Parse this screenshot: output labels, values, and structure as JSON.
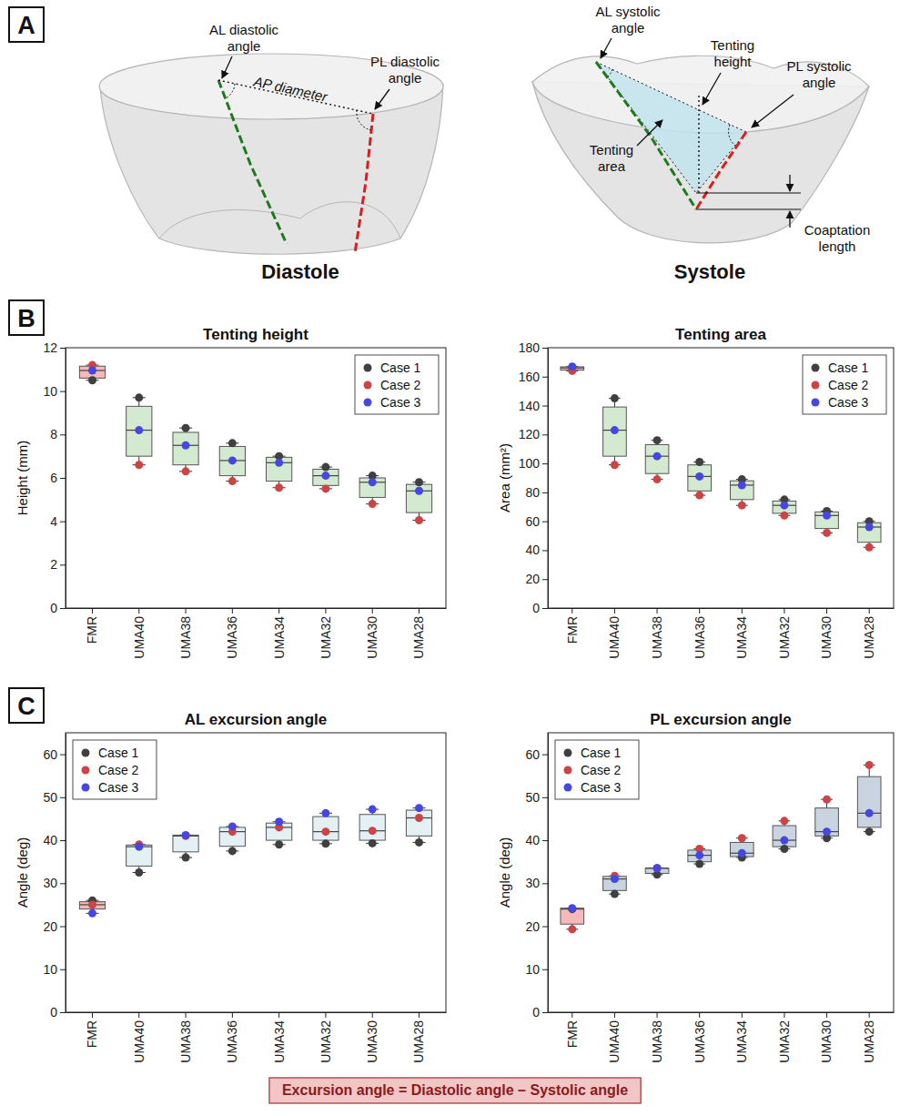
{
  "panel_labels": [
    "A",
    "B",
    "C"
  ],
  "diagram": {
    "diastole": {
      "title": "Diastole",
      "al_angle": "AL diastolic angle",
      "pl_angle": "PL diastolic angle",
      "ap_diameter": "AP diameter"
    },
    "systole": {
      "title": "Systole",
      "al_angle": "AL systolic angle",
      "pl_angle": "PL systolic angle",
      "tenting_height": "Tenting height",
      "tenting_area": "Tenting area",
      "coaptation_length": "Coaptation length"
    }
  },
  "note": "Excursion angle = Diastolic angle – Systolic angle",
  "chart_data": [
    {
      "type": "box",
      "title": "Tenting height",
      "y_label": "Height (mm)",
      "categories": [
        "FMR",
        "UMA40",
        "UMA38",
        "UMA36",
        "UMA34",
        "UMA32",
        "UMA30",
        "UMA28"
      ],
      "ylim": [
        0,
        12
      ],
      "yticks": [
        0,
        2,
        4,
        6,
        8,
        10,
        12
      ],
      "legend": "upper right",
      "colors": [
        "#f6b9b9",
        "#d4ead0",
        "#d4ead0",
        "#d4ead0",
        "#d4ead0",
        "#d4ead0",
        "#d4ead0",
        "#d4ead0"
      ],
      "box": {
        "min": [
          10.5,
          6.6,
          6.3,
          5.85,
          5.55,
          5.5,
          4.8,
          4.05
        ],
        "q1": [
          10.6,
          7.0,
          6.6,
          6.1,
          5.85,
          5.65,
          5.1,
          4.4
        ],
        "median": [
          10.95,
          8.2,
          7.5,
          6.8,
          6.7,
          6.1,
          5.8,
          5.4
        ],
        "q3": [
          11.15,
          9.3,
          8.1,
          7.45,
          6.95,
          6.4,
          6.0,
          5.7
        ],
        "max": [
          11.2,
          9.7,
          8.3,
          7.6,
          7.0,
          6.5,
          6.1,
          5.8
        ]
      },
      "series": [
        {
          "name": "Case 1",
          "color": "#404040",
          "values": [
            10.5,
            9.7,
            8.3,
            7.6,
            7.0,
            6.5,
            6.1,
            5.8
          ]
        },
        {
          "name": "Case 2",
          "color": "#cc4444",
          "values": [
            11.2,
            6.6,
            6.3,
            5.85,
            5.55,
            5.5,
            4.8,
            4.05
          ]
        },
        {
          "name": "Case 3",
          "color": "#4646e0",
          "values": [
            10.95,
            8.2,
            7.5,
            6.8,
            6.7,
            6.1,
            5.8,
            5.4
          ]
        }
      ]
    },
    {
      "type": "box",
      "title": "Tenting area",
      "y_label": "Area (mm²)",
      "categories": [
        "FMR",
        "UMA40",
        "UMA38",
        "UMA36",
        "UMA34",
        "UMA32",
        "UMA30",
        "UMA28"
      ],
      "ylim": [
        0,
        180
      ],
      "yticks": [
        0,
        20,
        40,
        60,
        80,
        100,
        120,
        140,
        160,
        180
      ],
      "legend": "upper right",
      "colors": [
        "#f6b9b9",
        "#d4ead0",
        "#d4ead0",
        "#d4ead0",
        "#d4ead0",
        "#d4ead0",
        "#d4ead0",
        "#d4ead0"
      ],
      "box": {
        "min": [
          164,
          99,
          89,
          78,
          71,
          64,
          52,
          42
        ],
        "q1": [
          164.5,
          105,
          93,
          81,
          75,
          65.5,
          55,
          45.5
        ],
        "median": [
          166,
          123,
          105,
          91,
          85,
          71,
          64,
          56
        ],
        "q3": [
          166.8,
          139,
          113,
          99,
          88,
          74,
          66.5,
          59
        ],
        "max": [
          167,
          145,
          116,
          101,
          89,
          75,
          67,
          60
        ]
      },
      "series": [
        {
          "name": "Case 1",
          "color": "#404040",
          "values": [
            166,
            145,
            116,
            101,
            89,
            75,
            67,
            60
          ]
        },
        {
          "name": "Case 2",
          "color": "#cc4444",
          "values": [
            164,
            99,
            89,
            78,
            71,
            64,
            52,
            42
          ]
        },
        {
          "name": "Case 3",
          "color": "#4646e0",
          "values": [
            167,
            123,
            105,
            91,
            85,
            71,
            64,
            56
          ]
        }
      ]
    },
    {
      "type": "box",
      "title": "AL excursion angle",
      "y_label": "Angle (deg)",
      "categories": [
        "FMR",
        "UMA40",
        "UMA38",
        "UMA36",
        "UMA34",
        "UMA32",
        "UMA30",
        "UMA28"
      ],
      "ylim": [
        0,
        65
      ],
      "yticks": [
        0,
        10,
        20,
        30,
        40,
        50,
        60
      ],
      "legend": "upper left",
      "colors": [
        "#f6b9b9",
        "#e3f1f5",
        "#e3f1f5",
        "#e3f1f5",
        "#e3f1f5",
        "#e3f1f5",
        "#e3f1f5",
        "#e3f1f5"
      ],
      "box": {
        "min": [
          23,
          32.5,
          36,
          37.5,
          39,
          39.2,
          39.3,
          39.5
        ],
        "q1": [
          24,
          34,
          37.3,
          38.6,
          40,
          40,
          40,
          41
        ],
        "median": [
          25,
          38.5,
          41,
          42,
          43,
          42,
          42.2,
          45.2
        ],
        "q3": [
          25.7,
          38.9,
          41.2,
          43,
          44,
          45.5,
          46,
          47
        ],
        "max": [
          26,
          39,
          41.2,
          43.2,
          44.3,
          46.3,
          47.2,
          47.5
        ]
      },
      "series": [
        {
          "name": "Case 1",
          "color": "#404040",
          "values": [
            26,
            32.5,
            36,
            37.5,
            39,
            39.2,
            39.3,
            39.5
          ]
        },
        {
          "name": "Case 2",
          "color": "#cc4444",
          "values": [
            25,
            39,
            41,
            42,
            43,
            42,
            42.2,
            45.2
          ]
        },
        {
          "name": "Case 3",
          "color": "#4646e0",
          "values": [
            23,
            38.5,
            41.2,
            43.2,
            44.3,
            46.3,
            47.2,
            47.5
          ]
        }
      ]
    },
    {
      "type": "box",
      "title": "PL excursion angle",
      "y_label": "Angle (deg)",
      "categories": [
        "FMR",
        "UMA40",
        "UMA38",
        "UMA36",
        "UMA34",
        "UMA32",
        "UMA30",
        "UMA28"
      ],
      "ylim": [
        0,
        65
      ],
      "yticks": [
        0,
        10,
        20,
        30,
        40,
        50,
        60
      ],
      "legend": "upper left",
      "colors": [
        "#f6b9b9",
        "#c9d4e0",
        "#c9d4e0",
        "#c9d4e0",
        "#c9d4e0",
        "#c9d4e0",
        "#c9d4e0",
        "#c9d4e0"
      ],
      "box": {
        "min": [
          19.3,
          27.5,
          32,
          34.5,
          36,
          38,
          40.5,
          42
        ],
        "q1": [
          20.5,
          28.3,
          32.3,
          35,
          36.2,
          38.5,
          41,
          43
        ],
        "median": [
          24,
          31,
          33.5,
          36.5,
          37,
          40,
          42,
          46.3
        ],
        "q3": [
          24.2,
          31.6,
          33.5,
          37.7,
          39.5,
          43.4,
          47.5,
          54.8
        ],
        "max": [
          24.2,
          31.7,
          33.5,
          38,
          40.5,
          44.5,
          49.5,
          57.5
        ]
      },
      "series": [
        {
          "name": "Case 1",
          "color": "#404040",
          "values": [
            24,
            27.5,
            32,
            34.5,
            36,
            38,
            40.5,
            42
          ]
        },
        {
          "name": "Case 2",
          "color": "#cc4444",
          "values": [
            19.3,
            31.7,
            33.5,
            38,
            40.5,
            44.5,
            49.5,
            57.5
          ]
        },
        {
          "name": "Case 3",
          "color": "#4646e0",
          "values": [
            24.2,
            31,
            33.5,
            36.5,
            37,
            40,
            42,
            46.3
          ]
        }
      ]
    }
  ]
}
